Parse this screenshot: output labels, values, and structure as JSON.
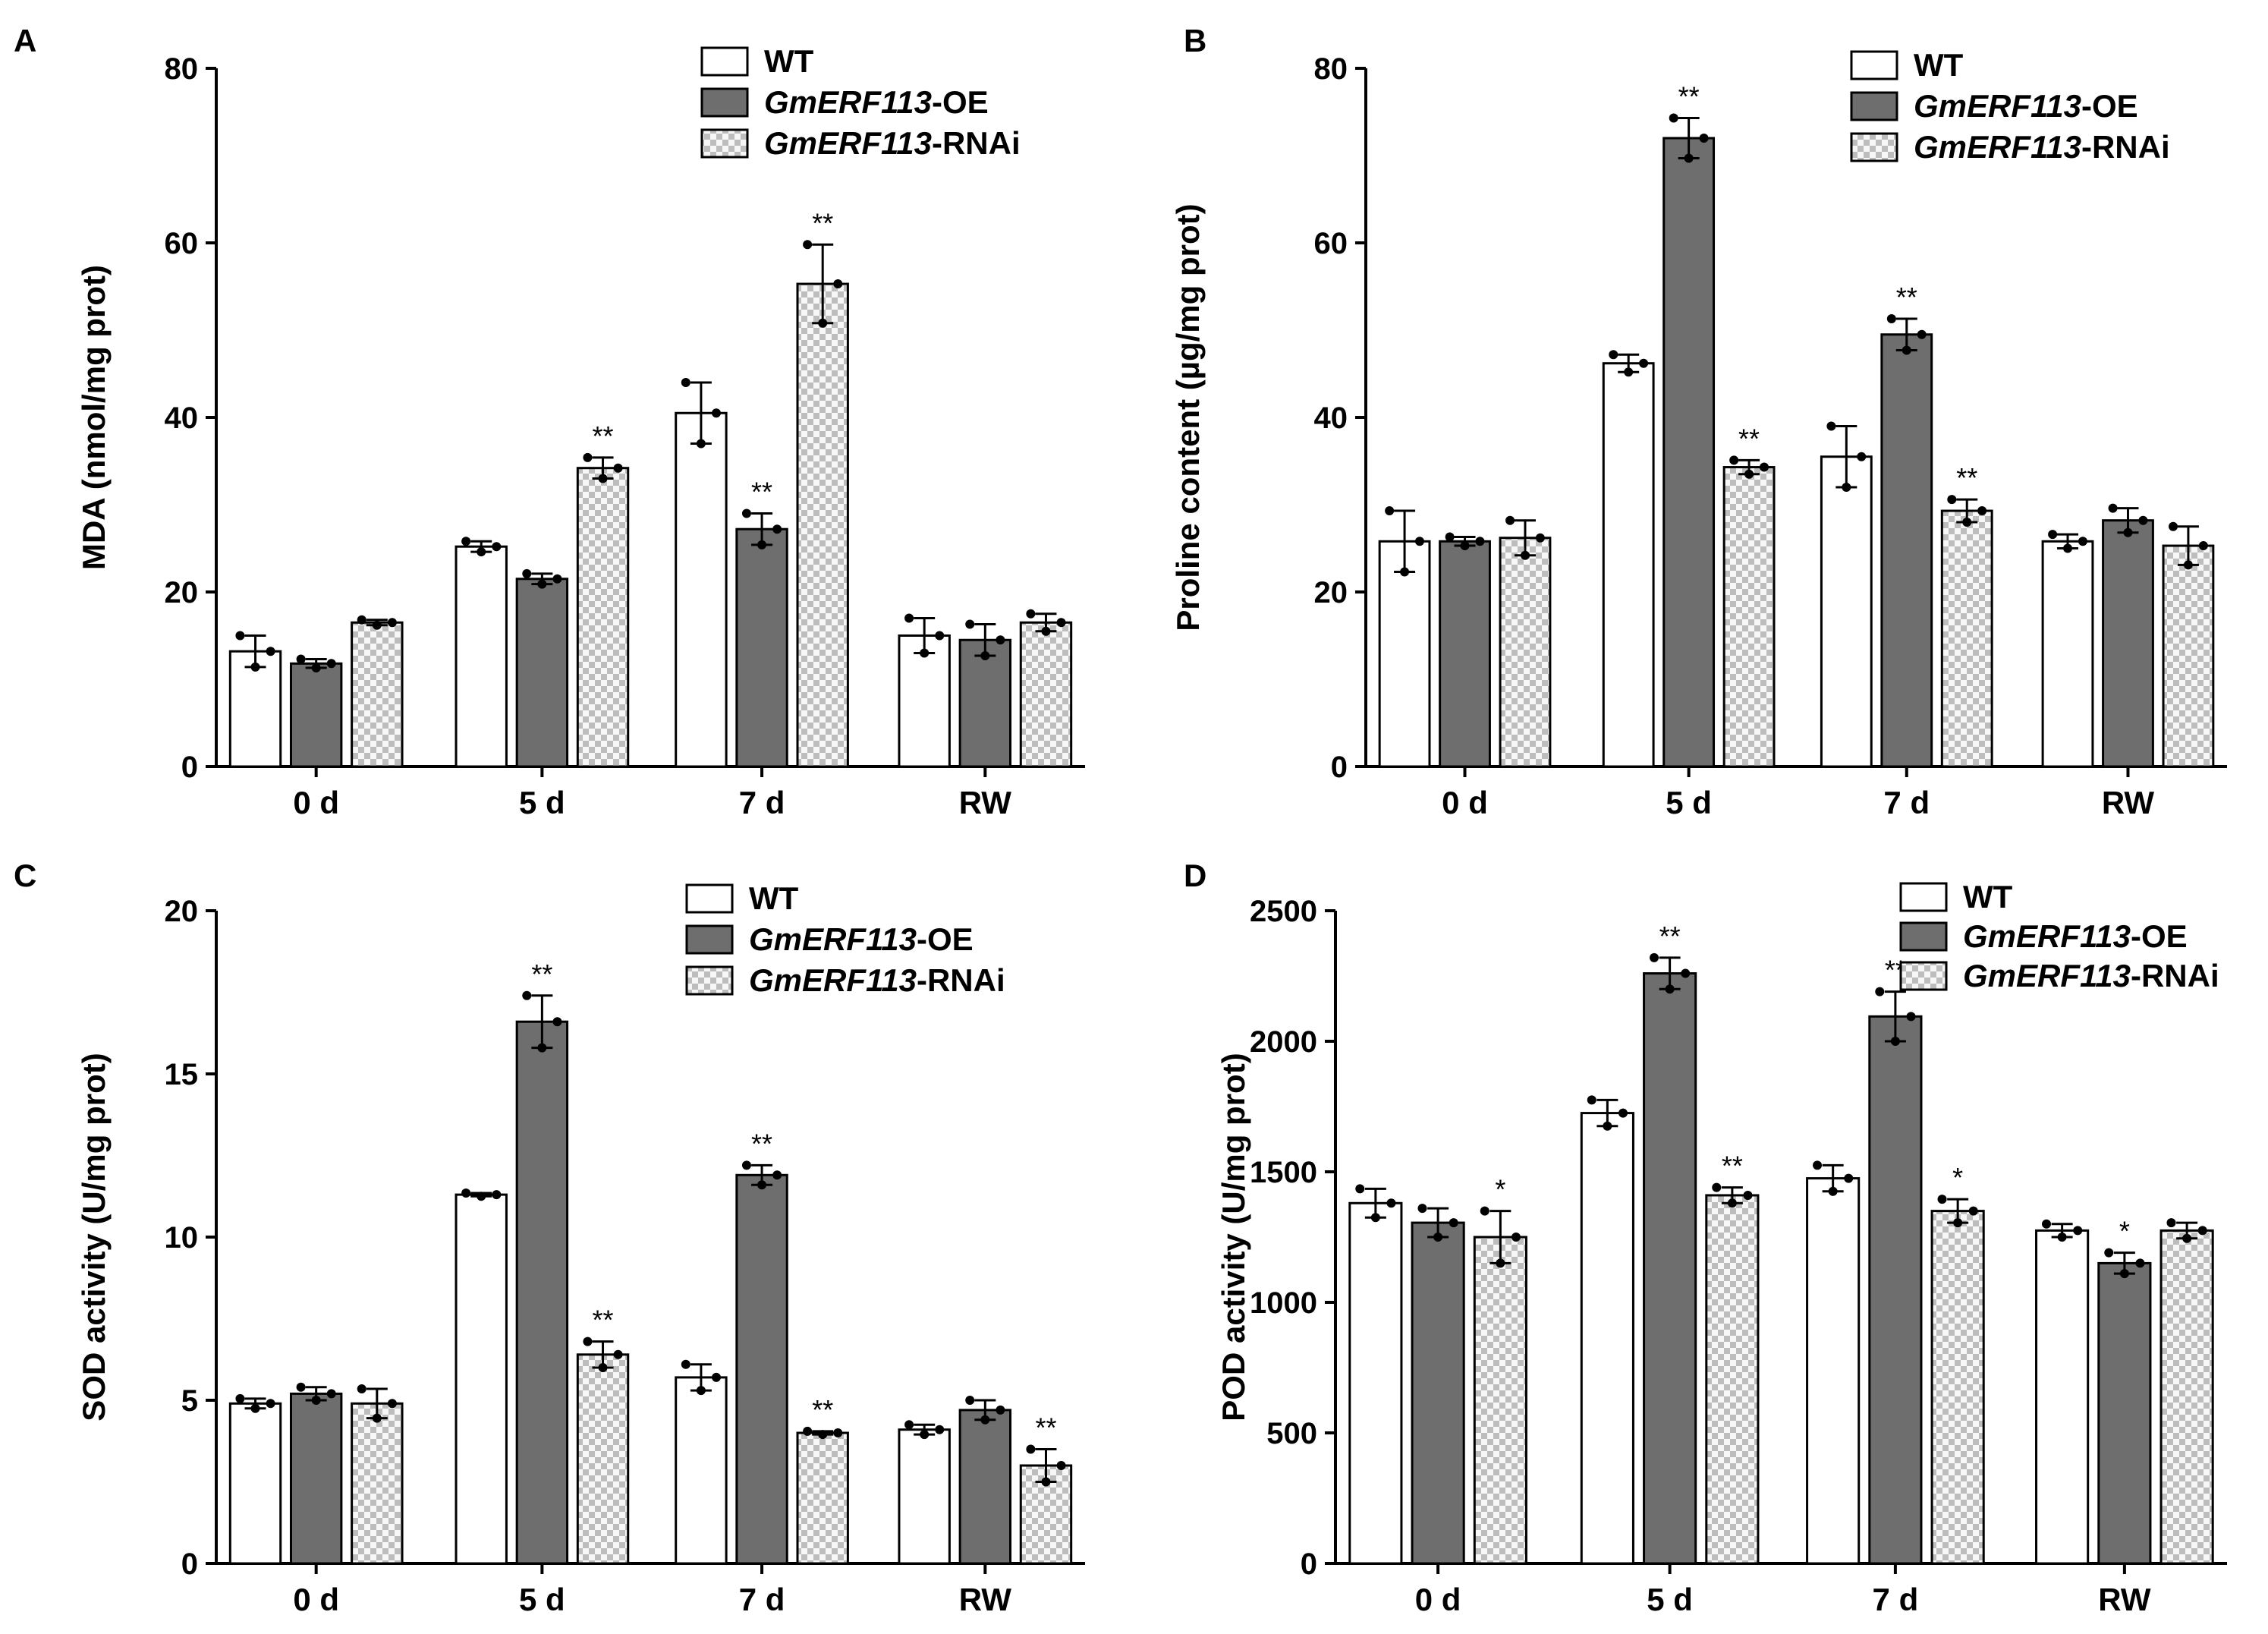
{
  "chart_data": [
    {
      "type": "bar",
      "panel": "A",
      "categories": [
        "0 d",
        "5 d",
        "7 d",
        "RW"
      ],
      "ylabel": "MDA (nmol/mg prot)",
      "ylim": [
        0,
        80
      ],
      "yticks": [
        "0",
        "20",
        "40",
        "60",
        "80"
      ],
      "series": [
        {
          "name": "WT",
          "values": [
            13.2,
            25.2,
            40.5,
            15
          ],
          "errors": [
            1.8,
            0.6,
            3.5,
            2
          ],
          "sig": [
            "",
            "",
            "",
            ""
          ]
        },
        {
          "name": "GmERF113-OE",
          "values": [
            11.8,
            21.5,
            27.2,
            14.5
          ],
          "errors": [
            0.5,
            0.6,
            1.8,
            1.8
          ],
          "sig": [
            "",
            "",
            "**",
            ""
          ]
        },
        {
          "name": "GmERF113-RNAi",
          "values": [
            16.5,
            34.2,
            55.3,
            16.5
          ],
          "errors": [
            0.3,
            1.2,
            4.5,
            1
          ],
          "sig": [
            "",
            "**",
            "**",
            ""
          ]
        }
      ]
    },
    {
      "type": "bar",
      "panel": "B",
      "categories": [
        "0 d",
        "5 d",
        "7 d",
        "RW"
      ],
      "ylabel": "Proline content (µg/mg prot)",
      "ylim": [
        0,
        80
      ],
      "yticks": [
        "0",
        "20",
        "40",
        "60",
        "80"
      ],
      "series": [
        {
          "name": "WT",
          "values": [
            25.8,
            46.2,
            35.5,
            25.8
          ],
          "errors": [
            3.5,
            1,
            3.5,
            0.8
          ],
          "sig": [
            "",
            "",
            "",
            ""
          ]
        },
        {
          "name": "GmERF113-OE",
          "values": [
            25.8,
            72,
            49.5,
            28.2
          ],
          "errors": [
            0.5,
            2.3,
            1.8,
            1.4
          ],
          "sig": [
            "",
            "**",
            "**",
            ""
          ]
        },
        {
          "name": "GmERF113-RNAi",
          "values": [
            26.2,
            34.3,
            29.3,
            25.3
          ],
          "errors": [
            2,
            0.8,
            1.3,
            2.2
          ],
          "sig": [
            "",
            "**",
            "**",
            ""
          ]
        }
      ]
    },
    {
      "type": "bar",
      "panel": "C",
      "categories": [
        "0 d",
        "5 d",
        "7 d",
        "RW"
      ],
      "ylabel": "SOD activity (U/mg prot)",
      "ylim": [
        0,
        20
      ],
      "yticks": [
        "0",
        "5",
        "10",
        "15",
        "20"
      ],
      "series": [
        {
          "name": "WT",
          "values": [
            4.9,
            11.3,
            5.7,
            4.1
          ],
          "errors": [
            0.15,
            0.05,
            0.4,
            0.15
          ],
          "sig": [
            "",
            "",
            "",
            ""
          ]
        },
        {
          "name": "GmERF113-OE",
          "values": [
            5.2,
            16.6,
            11.9,
            4.7
          ],
          "errors": [
            0.2,
            0.8,
            0.3,
            0.3
          ],
          "sig": [
            "",
            "**",
            "**",
            ""
          ]
        },
        {
          "name": "GmERF113-RNAi",
          "values": [
            4.9,
            6.4,
            4,
            3
          ],
          "errors": [
            0.45,
            0.4,
            0.05,
            0.5
          ],
          "sig": [
            "",
            "**",
            "**",
            "**"
          ]
        }
      ]
    },
    {
      "type": "bar",
      "panel": "D",
      "categories": [
        "0 d",
        "5 d",
        "7 d",
        "RW"
      ],
      "ylabel": "POD activity (U/mg prot)",
      "ylim": [
        0,
        2500
      ],
      "yticks": [
        "0",
        "500",
        "1000",
        "1500",
        "2000",
        "2500"
      ],
      "series": [
        {
          "name": "WT",
          "values": [
            1380,
            1725,
            1475,
            1275
          ],
          "errors": [
            55,
            50,
            50,
            25
          ],
          "sig": [
            "",
            "",
            "",
            ""
          ]
        },
        {
          "name": "GmERF113-OE",
          "values": [
            1305,
            2260,
            2095,
            1150
          ],
          "errors": [
            55,
            60,
            95,
            40
          ],
          "sig": [
            "",
            "**",
            "**",
            "*"
          ]
        },
        {
          "name": "GmERF113-RNAi",
          "values": [
            1250,
            1410,
            1350,
            1275
          ],
          "errors": [
            100,
            30,
            45,
            30
          ],
          "sig": [
            "*",
            "**",
            "*",
            ""
          ]
        }
      ]
    }
  ],
  "legend": {
    "wt": "WT",
    "oe_gene": "GmERF113",
    "oe_suffix": "-OE",
    "rnai_gene": "GmERF113",
    "rnai_suffix": "-RNAi"
  },
  "colors": {
    "wt": "#ffffff",
    "oe": "#6e6e6e",
    "rnai_light": "#f7f7f7",
    "rnai_dark": "#bdbdbd",
    "axis": "#000000"
  }
}
